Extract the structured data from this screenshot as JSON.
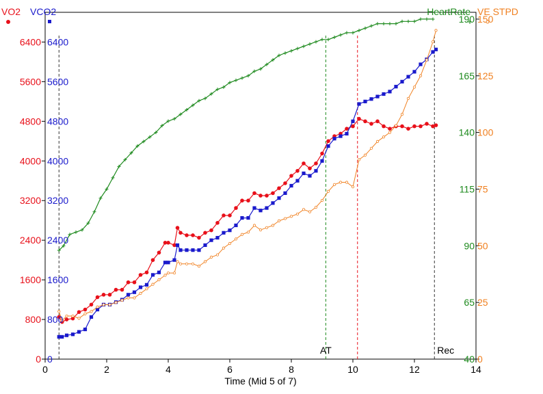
{
  "chart_data": {
    "type": "line",
    "xlabel": "Time (Mid 5 of 7)",
    "xlim": [
      0,
      14
    ],
    "x_ticks": [
      "0",
      "2",
      "4",
      "6",
      "8",
      "10",
      "12",
      "14"
    ],
    "x_tick_values": [
      0,
      2,
      4,
      6,
      8,
      10,
      12,
      14
    ],
    "axes": {
      "vo2": {
        "label": "VO2",
        "color": "#e8101a",
        "ylim": [
          0,
          7000
        ],
        "ticks": [
          0,
          800,
          1600,
          2400,
          3200,
          4000,
          4800,
          5600,
          6400
        ],
        "tick_labels": [
          "0",
          "800",
          "1600",
          "2400",
          "3200",
          "4000",
          "4800",
          "5600",
          "6400"
        ]
      },
      "vco2": {
        "label": "VCO2",
        "color": "#1a1acc",
        "ylim": [
          0,
          7000
        ],
        "ticks": [
          0,
          800,
          1600,
          2400,
          3200,
          4000,
          4800,
          5600,
          6400
        ],
        "tick_labels": [
          "0",
          "800",
          "1600",
          "2400",
          "3200",
          "4000",
          "4800",
          "5600",
          "6400"
        ]
      },
      "hr": {
        "label": "HeartRate",
        "color": "#1e8a1e",
        "ylim": [
          40,
          193
        ],
        "ticks": [
          40,
          65,
          90,
          115,
          140,
          165,
          190
        ],
        "tick_labels": [
          "40",
          "65",
          "90",
          "115",
          "140",
          "165",
          "190"
        ]
      },
      "ve": {
        "label": "VE STPD",
        "color": "#f08020",
        "ylim": [
          0,
          153
        ],
        "ticks": [
          0,
          25,
          50,
          75,
          100,
          125,
          150
        ],
        "tick_labels": [
          "0",
          "25",
          "50",
          "75",
          "100",
          "125",
          "150"
        ]
      }
    },
    "markers": [
      {
        "label": "",
        "x": 0.45,
        "color": "#333333"
      },
      {
        "label": "AT",
        "x": 9.12,
        "color": "#1e8a1e"
      },
      {
        "label": "",
        "x": 10.15,
        "color": "#e8101a"
      },
      {
        "label": "Rec",
        "x": 12.65,
        "color": "#333333"
      }
    ],
    "series": [
      {
        "name": "VO2",
        "axis": "vo2",
        "color": "#e8101a",
        "marker": "circle",
        "x": [
          0.45,
          0.55,
          0.7,
          0.9,
          1.1,
          1.3,
          1.5,
          1.7,
          1.9,
          2.1,
          2.3,
          2.5,
          2.7,
          2.9,
          3.1,
          3.3,
          3.5,
          3.7,
          3.9,
          4.0,
          4.2,
          4.3,
          4.4,
          4.6,
          4.8,
          5.0,
          5.2,
          5.4,
          5.6,
          5.8,
          6.0,
          6.2,
          6.4,
          6.6,
          6.8,
          7.0,
          7.2,
          7.4,
          7.6,
          7.8,
          8.0,
          8.2,
          8.4,
          8.6,
          8.8,
          9.0,
          9.2,
          9.4,
          9.6,
          9.8,
          10.0,
          10.2,
          10.4,
          10.6,
          10.8,
          11.0,
          11.2,
          11.4,
          11.6,
          11.8,
          12.0,
          12.2,
          12.4,
          12.6,
          12.7
        ],
        "y": [
          850,
          750,
          800,
          820,
          950,
          1000,
          1100,
          1250,
          1300,
          1300,
          1400,
          1400,
          1550,
          1550,
          1700,
          1750,
          2000,
          2150,
          2350,
          2350,
          2300,
          2650,
          2550,
          2500,
          2500,
          2450,
          2550,
          2600,
          2750,
          2900,
          2900,
          3050,
          3200,
          3200,
          3350,
          3300,
          3300,
          3350,
          3450,
          3550,
          3700,
          3800,
          3950,
          3850,
          3950,
          4150,
          4400,
          4500,
          4550,
          4650,
          4700,
          4850,
          4800,
          4750,
          4800,
          4700,
          4650,
          4700,
          4700,
          4650,
          4700,
          4700,
          4750,
          4700,
          4720
        ]
      },
      {
        "name": "VCO2",
        "axis": "vco2",
        "color": "#1a1acc",
        "marker": "square",
        "x": [
          0.45,
          0.55,
          0.7,
          0.9,
          1.1,
          1.3,
          1.5,
          1.7,
          1.9,
          2.1,
          2.3,
          2.5,
          2.7,
          2.9,
          3.1,
          3.3,
          3.5,
          3.7,
          3.9,
          4.0,
          4.2,
          4.3,
          4.4,
          4.6,
          4.8,
          5.0,
          5.2,
          5.4,
          5.6,
          5.8,
          6.0,
          6.2,
          6.4,
          6.6,
          6.8,
          7.0,
          7.2,
          7.4,
          7.6,
          7.8,
          8.0,
          8.2,
          8.4,
          8.6,
          8.8,
          9.0,
          9.2,
          9.4,
          9.6,
          9.8,
          10.0,
          10.2,
          10.4,
          10.6,
          10.8,
          11.0,
          11.2,
          11.4,
          11.6,
          11.8,
          12.0,
          12.2,
          12.4,
          12.6,
          12.7
        ],
        "y": [
          450,
          450,
          480,
          500,
          550,
          600,
          850,
          1000,
          1100,
          1100,
          1150,
          1200,
          1300,
          1350,
          1450,
          1500,
          1700,
          1750,
          1950,
          1950,
          2000,
          2300,
          2200,
          2200,
          2200,
          2200,
          2300,
          2400,
          2450,
          2550,
          2600,
          2700,
          2850,
          2850,
          3050,
          3000,
          3050,
          3150,
          3250,
          3350,
          3500,
          3600,
          3750,
          3700,
          3800,
          4000,
          4300,
          4450,
          4500,
          4550,
          4800,
          5150,
          5200,
          5250,
          5300,
          5350,
          5400,
          5500,
          5600,
          5700,
          5800,
          5950,
          6050,
          6200,
          6250
        ]
      },
      {
        "name": "HeartRate",
        "axis": "hr",
        "color": "#1e8a1e",
        "marker": "plus",
        "x": [
          0.45,
          0.6,
          0.8,
          1.0,
          1.2,
          1.4,
          1.6,
          1.8,
          2.0,
          2.2,
          2.4,
          2.6,
          2.8,
          3.0,
          3.2,
          3.4,
          3.6,
          3.8,
          4.0,
          4.2,
          4.4,
          4.6,
          4.8,
          5.0,
          5.2,
          5.4,
          5.6,
          5.8,
          6.0,
          6.2,
          6.4,
          6.6,
          6.8,
          7.0,
          7.2,
          7.4,
          7.6,
          7.8,
          8.0,
          8.2,
          8.4,
          8.6,
          8.8,
          9.0,
          9.2,
          9.4,
          9.6,
          9.8,
          10.0,
          10.2,
          10.4,
          10.6,
          10.8,
          11.0,
          11.2,
          11.4,
          11.6,
          11.8,
          12.0,
          12.2,
          12.4,
          12.6
        ],
        "y": [
          88,
          90,
          95,
          96,
          97,
          100,
          105,
          111,
          115,
          120,
          125,
          128,
          131,
          134,
          136,
          138,
          140,
          143,
          145,
          146,
          148,
          150,
          152,
          154,
          155,
          157,
          159,
          160,
          162,
          163,
          164,
          165,
          167,
          168,
          170,
          172,
          174,
          175,
          176,
          177,
          178,
          179,
          180,
          181,
          181,
          182,
          183,
          184,
          184,
          185,
          186,
          187,
          188,
          188,
          188,
          188,
          189,
          189,
          189,
          190,
          190,
          190
        ]
      },
      {
        "name": "VE STPD",
        "axis": "ve",
        "color": "#f08020",
        "marker": "circle-open",
        "x": [
          0.45,
          0.55,
          0.7,
          0.9,
          1.1,
          1.3,
          1.5,
          1.7,
          1.9,
          2.1,
          2.3,
          2.5,
          2.7,
          2.9,
          3.1,
          3.3,
          3.5,
          3.7,
          3.9,
          4.0,
          4.2,
          4.3,
          4.4,
          4.6,
          4.8,
          5.0,
          5.2,
          5.4,
          5.6,
          5.8,
          6.0,
          6.2,
          6.4,
          6.6,
          6.8,
          7.0,
          7.2,
          7.4,
          7.6,
          7.8,
          8.0,
          8.2,
          8.4,
          8.6,
          8.8,
          9.0,
          9.2,
          9.4,
          9.6,
          9.8,
          10.0,
          10.2,
          10.4,
          10.6,
          10.8,
          11.0,
          11.2,
          11.4,
          11.6,
          11.8,
          12.0,
          12.2,
          12.4,
          12.6,
          12.7
        ],
        "y": [
          21,
          17,
          19,
          19,
          18,
          20,
          21,
          23,
          24,
          24,
          25,
          26,
          27,
          27,
          29,
          31,
          33,
          35,
          37,
          38,
          38,
          43,
          42,
          42,
          42,
          41,
          43,
          45,
          46,
          49,
          51,
          53,
          55,
          56,
          59,
          57,
          58,
          59,
          61,
          62,
          63,
          64,
          66,
          65,
          67,
          70,
          74,
          77,
          78,
          78,
          76,
          88,
          90,
          93,
          96,
          98,
          100,
          103,
          108,
          115,
          120,
          125,
          132,
          140,
          145
        ]
      }
    ]
  }
}
